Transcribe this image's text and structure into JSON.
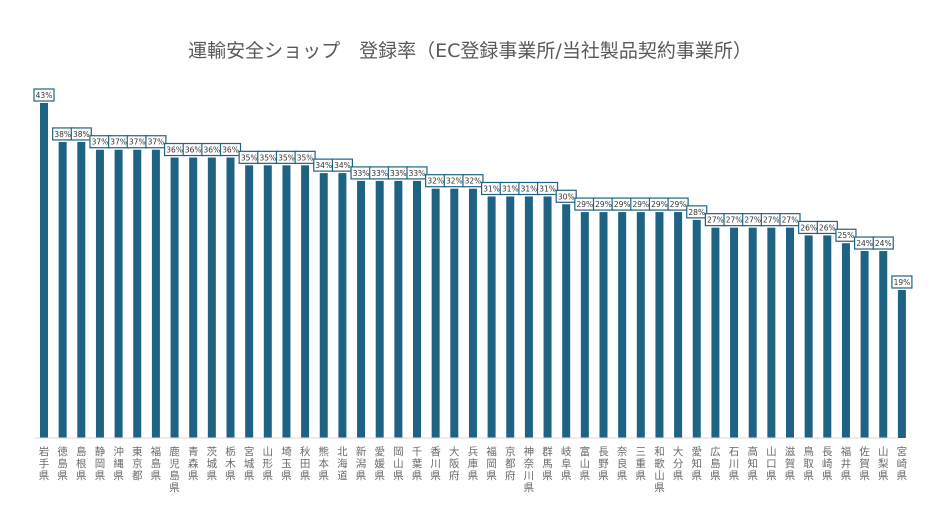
{
  "chart_data": {
    "type": "bar",
    "title": "運輸安全ショップ　登録率（EC登録事業所/当社製品契約事業所）",
    "xlabel": "",
    "ylabel": "",
    "ylim": [
      0,
      45
    ],
    "grid": false,
    "value_suffix": "%",
    "categories": [
      "岩手県",
      "徳島県",
      "島根県",
      "静岡県",
      "沖縄県",
      "東京都",
      "福島県",
      "鹿児島県",
      "青森県",
      "茨城県",
      "栃木県",
      "宮城県",
      "山形県",
      "埼玉県",
      "秋田県",
      "熊本県",
      "北海道",
      "新潟県",
      "愛媛県",
      "岡山県",
      "千葉県",
      "香川県",
      "大阪府",
      "兵庫県",
      "福岡県",
      "京都府",
      "神奈川県",
      "群馬県",
      "岐阜県",
      "富山県",
      "長野県",
      "奈良県",
      "三重県",
      "和歌山県",
      "大分県",
      "愛知県",
      "広島県",
      "石川県",
      "高知県",
      "山口県",
      "滋賀県",
      "鳥取県",
      "長崎県",
      "福井県",
      "佐賀県",
      "山梨県",
      "宮崎県"
    ],
    "values": [
      43,
      38,
      38,
      37,
      37,
      37,
      37,
      36,
      36,
      36,
      36,
      35,
      35,
      35,
      35,
      34,
      34,
      33,
      33,
      33,
      33,
      32,
      32,
      32,
      31,
      31,
      31,
      31,
      30,
      29,
      29,
      29,
      29,
      29,
      29,
      28,
      27,
      27,
      27,
      27,
      27,
      26,
      26,
      25,
      24,
      24,
      19
    ],
    "colors": {
      "bar": "#1F6384",
      "label_border": "#1F6384"
    }
  }
}
